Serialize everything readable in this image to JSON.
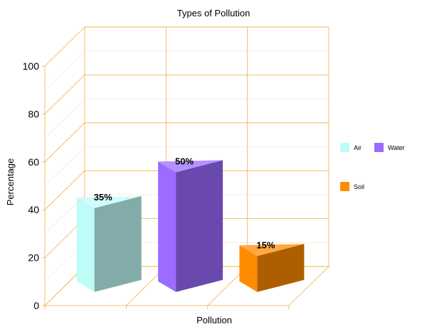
{
  "chart_data": {
    "type": "bar",
    "title": "Types of Pollution",
    "xlabel": "Pollution",
    "ylabel": "Percentage",
    "ylim": [
      0,
      100
    ],
    "yticks": [
      0,
      20,
      40,
      60,
      80,
      100
    ],
    "three_d": true,
    "grid": true,
    "legend_position": "right",
    "series": [
      {
        "name": "Air",
        "value": 35,
        "label": "35%",
        "color": "#bffcf8"
      },
      {
        "name": "Water",
        "value": 50,
        "label": "50%",
        "color": "#9b6cff"
      },
      {
        "name": "Soil",
        "value": 15,
        "label": "15%",
        "color": "#ff8c00"
      }
    ],
    "grid_color": "#f0b040"
  }
}
